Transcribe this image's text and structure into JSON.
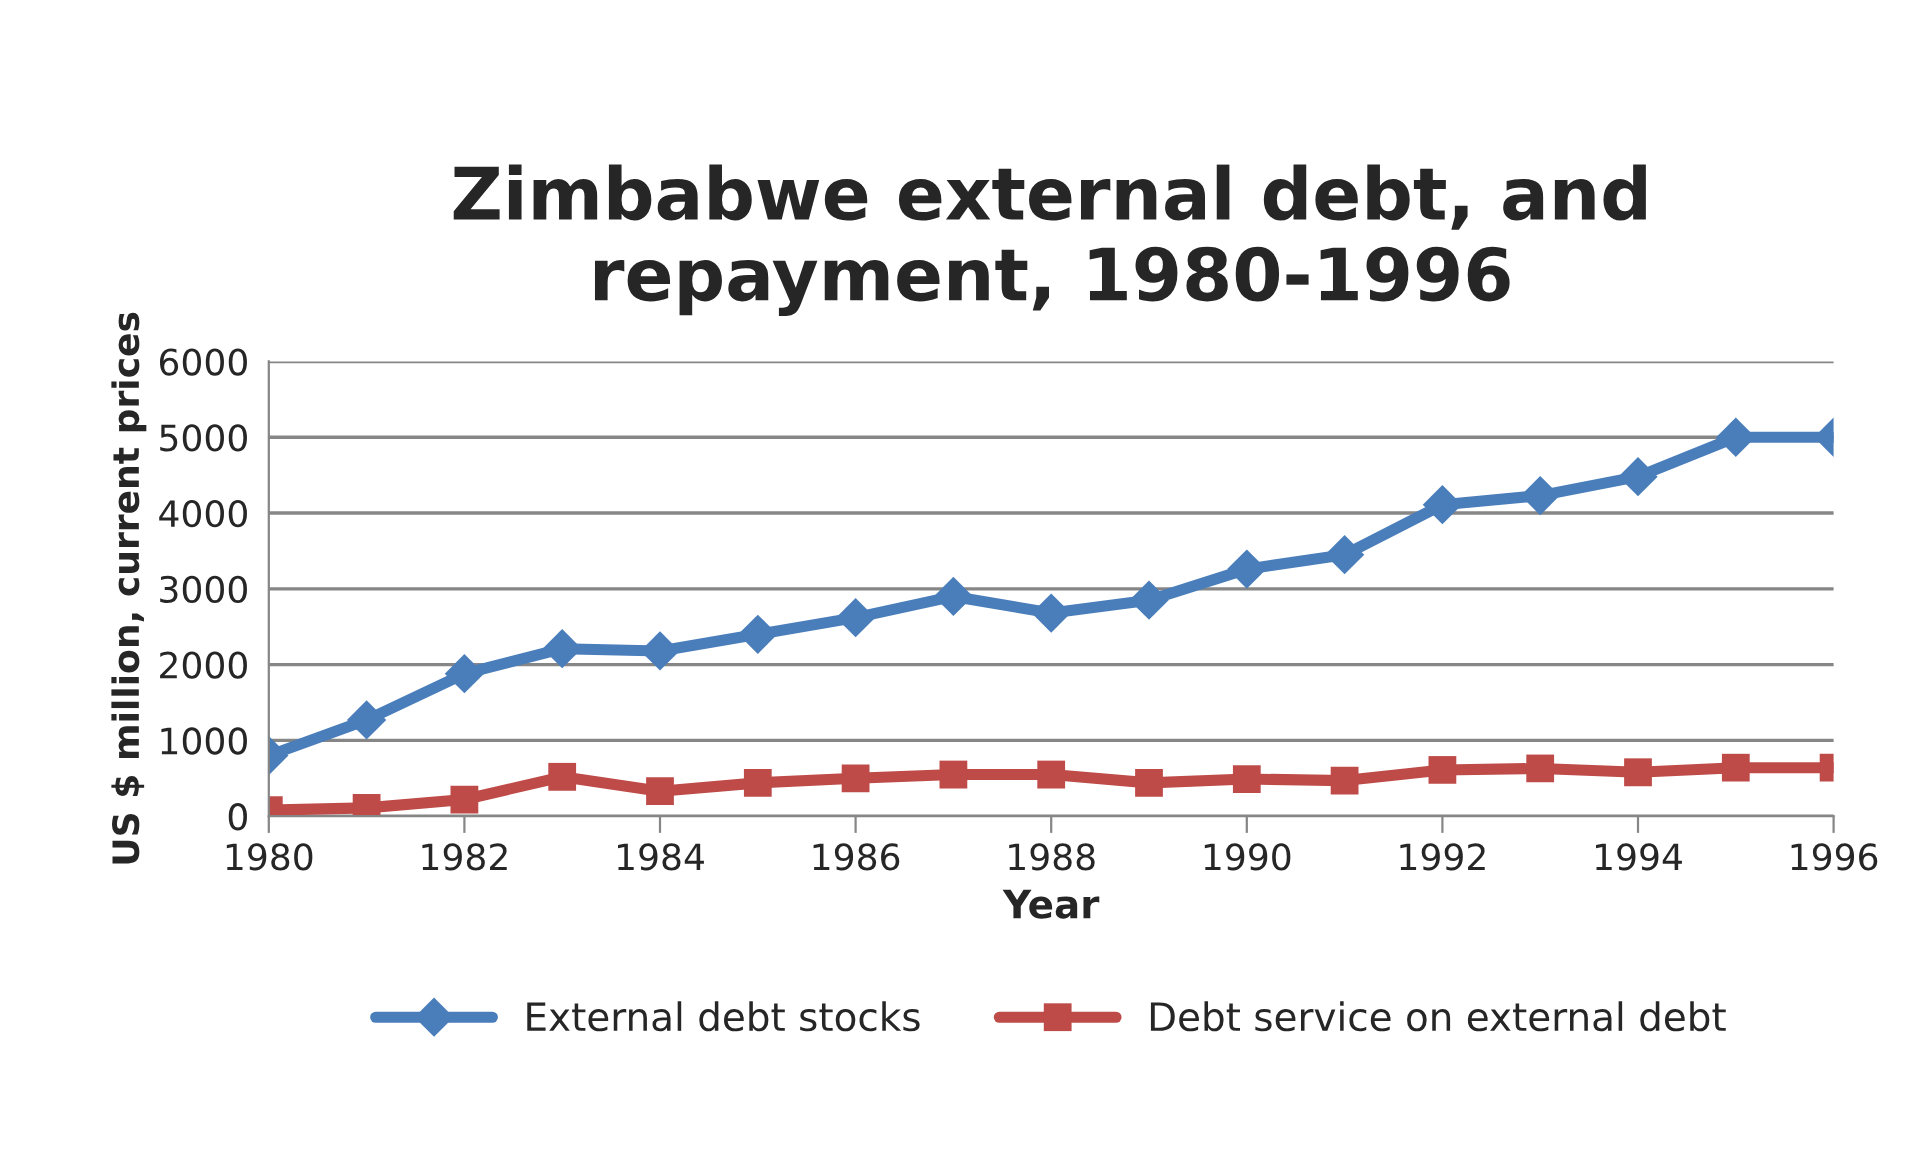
{
  "chart_data": {
    "type": "line",
    "title": "Zimbabwe external debt, and\nrepayment, 1980-1996",
    "xlabel": "Year",
    "ylabel": "US $ million, current prices",
    "x": [
      1980,
      1981,
      1982,
      1983,
      1984,
      1985,
      1986,
      1987,
      1988,
      1989,
      1990,
      1991,
      1992,
      1993,
      1994,
      1995,
      1996
    ],
    "series": [
      {
        "name": "External debt stocks",
        "color": "#4a7ebb",
        "marker": "diamond",
        "values": [
          800,
          1270,
          1880,
          2210,
          2180,
          2400,
          2620,
          2900,
          2680,
          2850,
          3260,
          3450,
          4110,
          4230,
          4480,
          5000,
          5000
        ]
      },
      {
        "name": "Debt service on external debt",
        "color": "#be4b48",
        "marker": "square",
        "values": [
          80,
          110,
          220,
          520,
          330,
          440,
          500,
          550,
          550,
          440,
          490,
          470,
          610,
          630,
          580,
          640,
          640
        ]
      }
    ],
    "xlim": [
      1980,
      1996
    ],
    "xticks": [
      1980,
      1982,
      1984,
      1986,
      1988,
      1990,
      1992,
      1994,
      1996
    ],
    "ylim": [
      0,
      6000
    ],
    "yticks": [
      0,
      1000,
      2000,
      3000,
      4000,
      5000,
      6000
    ],
    "grid": "y",
    "legend": "bottom",
    "line_style": "solid"
  }
}
